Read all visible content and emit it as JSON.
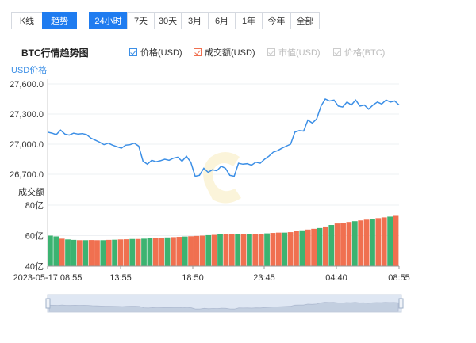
{
  "tabs_left": [
    {
      "label": "K线",
      "active": false
    },
    {
      "label": "趋势",
      "active": true
    }
  ],
  "tabs_right": [
    {
      "label": "24小时",
      "active": true
    },
    {
      "label": "7天",
      "active": false
    },
    {
      "label": "30天",
      "active": false
    },
    {
      "label": "3月",
      "active": false
    },
    {
      "label": "6月",
      "active": false
    },
    {
      "label": "1年",
      "active": false
    },
    {
      "label": "今年",
      "active": false
    },
    {
      "label": "全部",
      "active": false
    }
  ],
  "legend": [
    {
      "label": "价格(USD)",
      "on": true,
      "color": "#3c8fe6"
    },
    {
      "label": "成交额(USD)",
      "on": true,
      "color": "#f07050"
    },
    {
      "label": "市值(USD)",
      "on": false,
      "color": "#cccccc"
    },
    {
      "label": "价格(BTC)",
      "on": false,
      "color": "#cccccc"
    }
  ],
  "chart_data": {
    "type": "line",
    "title": "BTC行情趋势图",
    "price": {
      "ylabel": "USD价格",
      "yticks": [
        "27,600.0",
        "27,300.0",
        "27,000.0",
        "26,700.0"
      ],
      "ylim": [
        26700,
        27600
      ],
      "color": "#3c8fe6",
      "values": [
        27120,
        27110,
        27095,
        27140,
        27100,
        27090,
        27110,
        27100,
        27105,
        27095,
        27060,
        27040,
        27020,
        26995,
        27010,
        26990,
        26975,
        26960,
        26990,
        26995,
        27010,
        26980,
        26830,
        26800,
        26840,
        26825,
        26835,
        26850,
        26840,
        26860,
        26870,
        26830,
        26880,
        26820,
        26680,
        26690,
        26760,
        26720,
        26745,
        26735,
        26780,
        26760,
        26690,
        26680,
        26810,
        26800,
        26805,
        26790,
        26820,
        26810,
        26850,
        26880,
        26920,
        26935,
        26960,
        26980,
        27000,
        27120,
        27135,
        27130,
        27240,
        27210,
        27250,
        27380,
        27450,
        27430,
        27440,
        27380,
        27370,
        27420,
        27390,
        27440,
        27380,
        27390,
        27350,
        27390,
        27420,
        27400,
        27440,
        27420,
        27430,
        27390
      ]
    },
    "volume": {
      "ylabel": "成交额",
      "yticks": [
        "80亿",
        "60亿",
        "40亿"
      ],
      "ylim": [
        40,
        80
      ],
      "colors": {
        "up": "#3cb371",
        "down": "#f07050"
      },
      "values": [
        60.0,
        59.5,
        58.0,
        57.5,
        57.2,
        57.0,
        57.0,
        57.1,
        57.0,
        57.0,
        57.2,
        57.3,
        57.5,
        57.6,
        57.8,
        57.8,
        58.0,
        58.2,
        58.4,
        58.6,
        58.8,
        59.0,
        59.2,
        59.4,
        59.6,
        59.8,
        60.0,
        60.3,
        60.5,
        60.8,
        61.0,
        61.0,
        61.0,
        61.0,
        61.0,
        61.0,
        61.0,
        61.5,
        61.8,
        62.0,
        62.0,
        62.3,
        63.0,
        63.5,
        64.0,
        64.5,
        65.0,
        66.0,
        67.0,
        68.0,
        68.5,
        69.0,
        69.5,
        70.0,
        70.5,
        71.0,
        71.5,
        72.0,
        72.5,
        73.0
      ],
      "up_flags": [
        1,
        1,
        0,
        1,
        1,
        0,
        1,
        0,
        0,
        1,
        0,
        1,
        0,
        0,
        1,
        0,
        1,
        1,
        0,
        0,
        1,
        0,
        0,
        1,
        0,
        0,
        0,
        1,
        0,
        1,
        0,
        0,
        1,
        0,
        1,
        0,
        0,
        1,
        0,
        0,
        1,
        0,
        0,
        1,
        0,
        0,
        1,
        0,
        1,
        0,
        0,
        0,
        1,
        0,
        0,
        1,
        0,
        0,
        1,
        0
      ]
    },
    "xticks": [
      "2023-05-17 08:55",
      "13:55",
      "18:50",
      "23:45",
      "04:40",
      "08:55"
    ]
  }
}
